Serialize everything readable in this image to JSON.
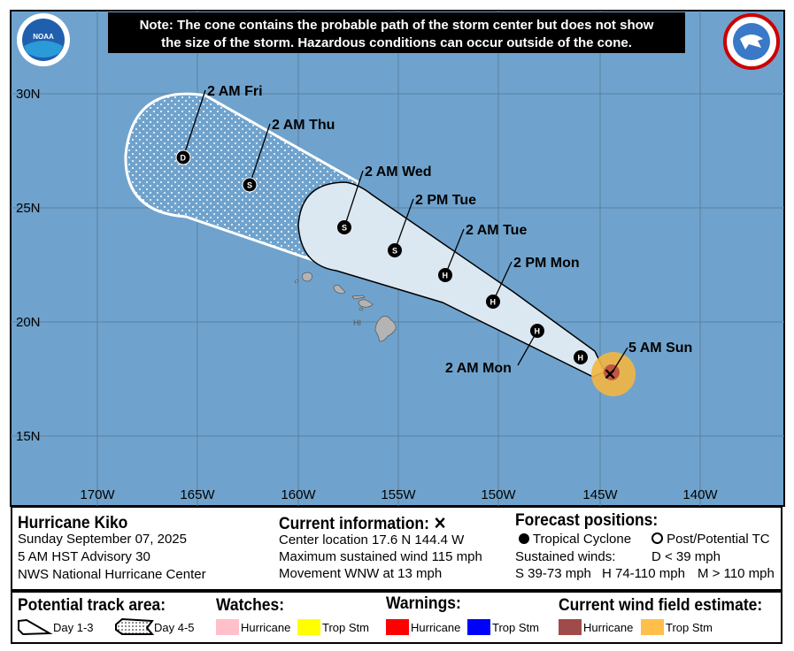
{
  "note": [
    "Note: The cone contains the probable path of the storm center but does not show",
    "the size of the storm. Hazardous conditions can occur outside of the cone."
  ],
  "logos": {
    "left": "NOAA",
    "right": "NATIONAL WEATHER SERVICE"
  },
  "map": {
    "lat_labels": [
      "30N",
      "25N",
      "20N",
      "15N"
    ],
    "lon_labels": [
      "170W",
      "165W",
      "160W",
      "155W",
      "150W",
      "145W",
      "140W"
    ],
    "state_label": "HI",
    "colors": {
      "ocean": "#6fa3cd",
      "land": "#b4b4b4",
      "cone": "#dce8f1",
      "hurricane_wind": "#a04b4b",
      "ts_wind": "#f3b641"
    },
    "forecast_points": [
      {
        "label": "5 AM Sun",
        "type": "current"
      },
      {
        "label": "",
        "type": "H"
      },
      {
        "label": "2 AM Mon",
        "type": "H"
      },
      {
        "label": "2 PM Mon",
        "type": "H"
      },
      {
        "label": "2 AM Tue",
        "type": "H"
      },
      {
        "label": "2 PM Tue",
        "type": "S"
      },
      {
        "label": "2 AM Wed",
        "type": "S"
      },
      {
        "label": "2 AM Thu",
        "type": "S"
      },
      {
        "label": "2 AM Fri",
        "type": "D"
      }
    ]
  },
  "storm": {
    "name": "Hurricane Kiko",
    "date": "Sunday September 07, 2025",
    "advisory": "5 AM HST Advisory 30",
    "center": "NWS National Hurricane Center"
  },
  "current": {
    "title": "Current information:",
    "marker": "✕",
    "location": "Center location 17.6 N 144.4 W",
    "wind": "Maximum sustained wind 115 mph",
    "movement": "Movement WNW at 13 mph"
  },
  "forecast": {
    "title": "Forecast positions:",
    "tc": "Tropical Cyclone",
    "ptc": "Post/Potential TC",
    "sustained": "Sustained winds:",
    "d": "D < 39 mph",
    "s": "S 39-73 mph",
    "h": "H 74-110 mph",
    "m": "M > 110 mph"
  },
  "legend": {
    "track_title": "Potential track area:",
    "day13": "Day 1-3",
    "day45": "Day 4-5",
    "watches_title": "Watches:",
    "warnings_title": "Warnings:",
    "wind_title": "Current wind field estimate:",
    "watch_hurricane": "Hurricane",
    "watch_ts": "Trop Stm",
    "warn_hurricane": "Hurricane",
    "warn_ts": "Trop Stm",
    "wind_hurricane": "Hurricane",
    "wind_ts": "Trop Stm",
    "colors": {
      "watch_hurricane": "#ffc0cb",
      "watch_ts": "#ffff00",
      "warn_hurricane": "#ff0000",
      "warn_ts": "#0000ff",
      "wind_hurricane": "#a04b4b",
      "wind_ts": "#ffbf4a"
    }
  }
}
